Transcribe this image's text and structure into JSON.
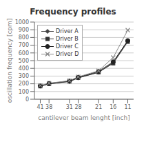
{
  "chart_data": {
    "type": "line",
    "title": "Frequency profiles",
    "xlabel": "cantilever beam lenght [inch]",
    "ylabel": "oscillation frequency [cpm]",
    "x": [
      41,
      38,
      31,
      28,
      21,
      16,
      11
    ],
    "series": [
      {
        "name": "Driver A",
        "color": "#444444",
        "marker": "diamond",
        "values": [
          170,
          200,
          228,
          275,
          348,
          475,
          750
        ]
      },
      {
        "name": "Driver B",
        "color": "#333333",
        "marker": "square",
        "values": [
          168,
          198,
          232,
          278,
          350,
          465,
          745
        ]
      },
      {
        "name": "Driver C",
        "color": "#222222",
        "marker": "circle",
        "values": [
          172,
          205,
          235,
          285,
          360,
          485,
          760
        ]
      },
      {
        "name": "Driver D",
        "color": "#888888",
        "marker": "x",
        "values": [
          178,
          208,
          240,
          290,
          368,
          540,
          895
        ]
      }
    ],
    "xlim": [
      43,
      9
    ],
    "xticks": [
      41,
      38,
      31,
      28,
      21,
      16,
      11
    ],
    "ylim": [
      0,
      1000
    ],
    "yticks": [
      0,
      100,
      200,
      300,
      400,
      500,
      600,
      700,
      800,
      900,
      1000
    ],
    "grid": "y",
    "legend": "upper left"
  }
}
